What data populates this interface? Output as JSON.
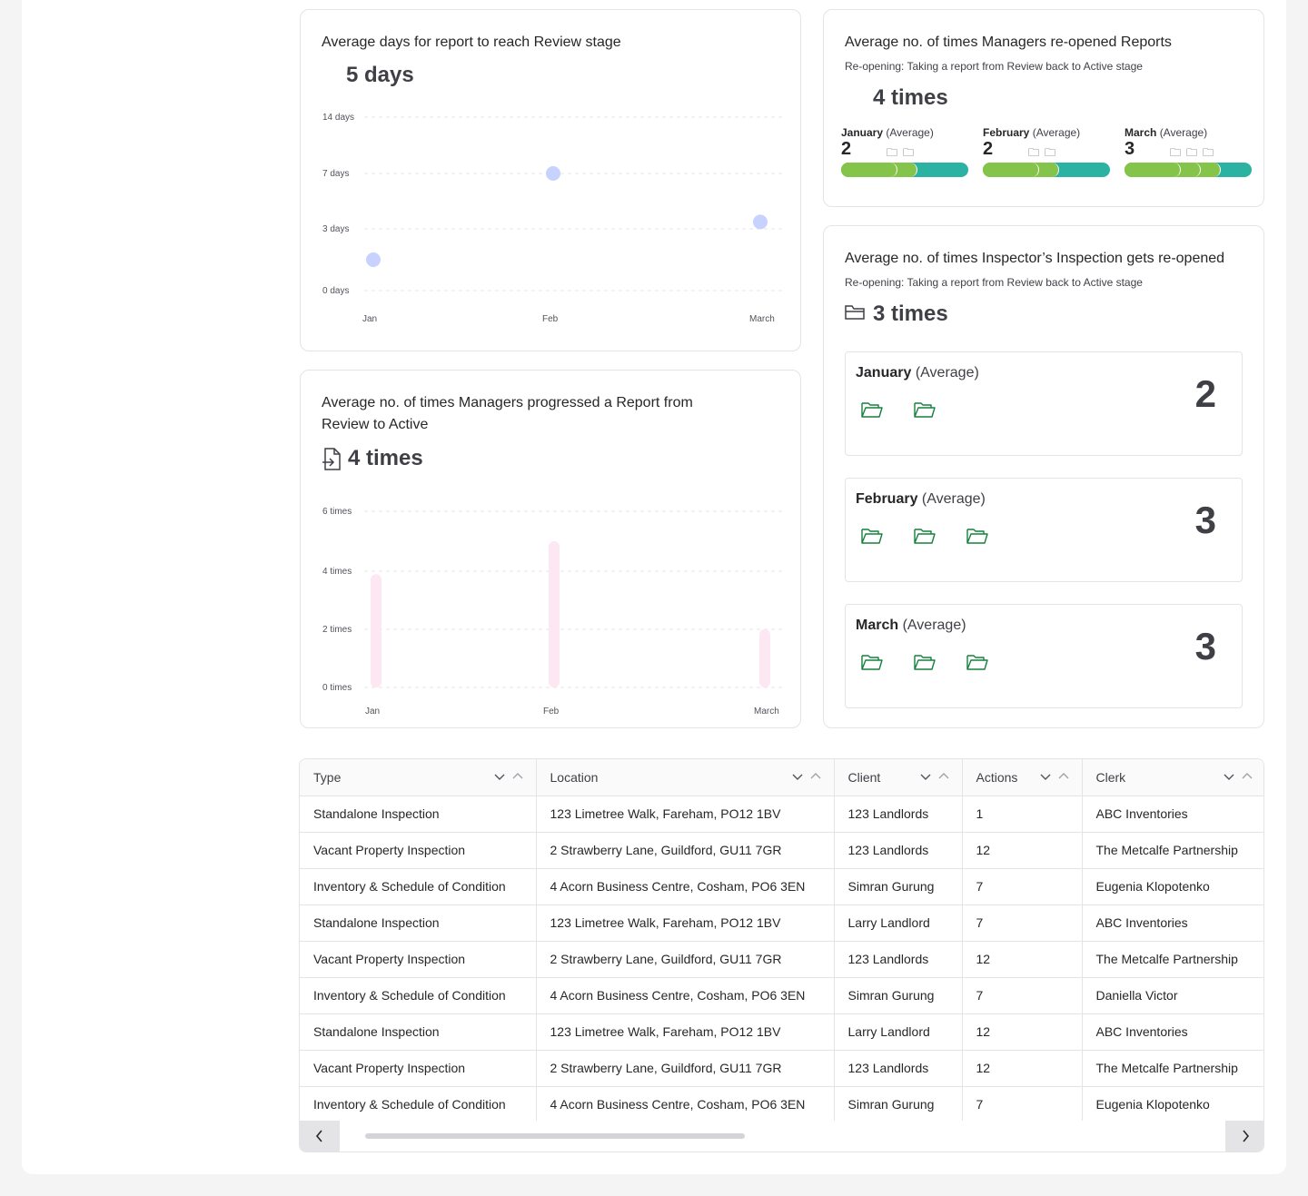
{
  "days_card": {
    "title": "Average days for report to reach Review stage",
    "value": "5 days"
  },
  "managers_reopened": {
    "title": "Average no. of times Managers re-opened Reports",
    "subtitle": "Re-opening: Taking a report from Review back to Active stage",
    "value": "4 times",
    "months": [
      {
        "name": "January",
        "suffix": "(Average)",
        "value": "2",
        "count": 2,
        "icons": "🗀🗀"
      },
      {
        "name": "February",
        "suffix": "(Average)",
        "value": "2",
        "count": 2,
        "icons": "🗀🗀"
      },
      {
        "name": "March",
        "suffix": "(Average)",
        "value": "3",
        "count": 3,
        "icons": "🗀🗀🗀"
      }
    ]
  },
  "progressed_card": {
    "title": "Average no. of times Managers progressed a Report from Review to Active",
    "value": "4 times"
  },
  "inspection_reopened": {
    "title": "Average no. of times Inspector’s Inspection gets re-opened",
    "subtitle": "Re-opening: Taking a report from Review back to Active stage",
    "value": "3 times",
    "months": [
      {
        "name": "January",
        "suffix": "(Average)",
        "value": "2",
        "count": 2
      },
      {
        "name": "February",
        "suffix": "(Average)",
        "value": "3",
        "count": 3
      },
      {
        "name": "March",
        "suffix": "(Average)",
        "value": "3",
        "count": 3
      }
    ]
  },
  "chart_data": [
    {
      "type": "scatter",
      "title": "Average days for report to reach Review stage",
      "categories": [
        "Jan",
        "Feb",
        "March"
      ],
      "values": [
        1.5,
        7,
        3.5
      ],
      "yticks": [
        {
          "value": 14,
          "label": "14 days"
        },
        {
          "value": 7,
          "label": "7 days"
        },
        {
          "value": 3,
          "label": "3 days"
        },
        {
          "value": 0,
          "label": "0 days"
        }
      ],
      "color": "#c7d2fe"
    },
    {
      "type": "bar",
      "title": "Average no. of times Managers progressed a Report from Review to Active",
      "categories": [
        "Jan",
        "Feb",
        "March"
      ],
      "values": [
        3.9,
        5,
        2
      ],
      "yticks": [
        {
          "value": 6,
          "label": "6 times"
        },
        {
          "value": 4,
          "label": "4 times"
        },
        {
          "value": 2,
          "label": "2 times"
        },
        {
          "value": 0,
          "label": "0 times"
        }
      ],
      "color": "#fce7f3"
    }
  ],
  "table": {
    "columns": [
      "Type",
      "Location",
      "Client",
      "Actions",
      "Clerk"
    ],
    "rows": [
      [
        "Standalone Inspection",
        "123 Limetree Walk, Fareham, PO12 1BV",
        "123 Landlords",
        "1",
        "ABC Inventories"
      ],
      [
        "Vacant Property Inspection",
        "2 Strawberry Lane, Guildford, GU11 7GR",
        "123 Landlords",
        "12",
        "The Metcalfe Partnership"
      ],
      [
        "Inventory & Schedule of Condition",
        "4 Acorn Business Centre, Cosham, PO6 3EN",
        "Simran Gurung",
        "7",
        "Eugenia Klopotenko"
      ],
      [
        "Standalone Inspection",
        "123 Limetree Walk, Fareham, PO12 1BV",
        "Larry Landlord",
        "7",
        "ABC Inventories"
      ],
      [
        "Vacant Property Inspection",
        "2 Strawberry Lane, Guildford, GU11 7GR",
        "123 Landlords",
        "12",
        "The Metcalfe Partnership"
      ],
      [
        "Inventory & Schedule of Condition",
        "4 Acorn Business Centre, Cosham, PO6 3EN",
        "Simran Gurung",
        "7",
        "Daniella Victor"
      ],
      [
        "Standalone Inspection",
        "123 Limetree Walk, Fareham, PO12 1BV",
        "Larry Landlord",
        "12",
        "ABC Inventories"
      ],
      [
        "Vacant Property Inspection",
        "2 Strawberry Lane, Guildford, GU11 7GR",
        "123 Landlords",
        "12",
        "The Metcalfe Partnership"
      ],
      [
        "Inventory & Schedule of Condition",
        "4 Acorn Business Centre, Cosham, PO6 3EN",
        "Simran Gurung",
        "7",
        "Eugenia Klopotenko"
      ]
    ]
  }
}
